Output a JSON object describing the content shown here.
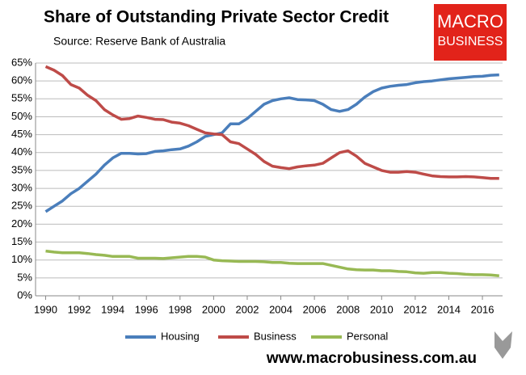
{
  "chart_data": {
    "type": "line",
    "title": "Share of Outstanding Private Sector Credit",
    "subtitle": "Source: Reserve Bank of Australia",
    "logo": [
      "MACRO",
      "BUSINESS"
    ],
    "footer": "www.macrobusiness.com.au",
    "x": [
      1990,
      1990.5,
      1991,
      1991.5,
      1992,
      1992.5,
      1993,
      1993.5,
      1994,
      1994.5,
      1995,
      1995.5,
      1996,
      1996.5,
      1997,
      1997.5,
      1998,
      1998.5,
      1999,
      1999.5,
      2000,
      2000.5,
      2001,
      2001.5,
      2002,
      2002.5,
      2003,
      2003.5,
      2004,
      2004.5,
      2005,
      2005.5,
      2006,
      2006.5,
      2007,
      2007.5,
      2008,
      2008.5,
      2009,
      2009.5,
      2010,
      2010.5,
      2011,
      2011.5,
      2012,
      2012.5,
      2013,
      2013.5,
      2014,
      2014.5,
      2015,
      2015.5,
      2016,
      2016.5,
      2017
    ],
    "series": [
      {
        "name": "Housing",
        "color": "#4a7ebb",
        "values": [
          23.5,
          25,
          26.5,
          28.5,
          30,
          32,
          34,
          36.5,
          38.5,
          39.8,
          39.8,
          39.6,
          39.7,
          40.3,
          40.5,
          40.8,
          41,
          41.8,
          43,
          44.5,
          45,
          45.5,
          48,
          48,
          49.5,
          51.5,
          53.5,
          54.5,
          55,
          55.3,
          54.8,
          54.7,
          54.5,
          53.5,
          52,
          51.5,
          52,
          53.5,
          55.5,
          57,
          58,
          58.5,
          58.8,
          59,
          59.5,
          59.8,
          60,
          60.3,
          60.6,
          60.8,
          61,
          61.2,
          61.3,
          61.6,
          61.7
        ]
      },
      {
        "name": "Business",
        "color": "#be4b48",
        "values": [
          64,
          63,
          61.5,
          59,
          58,
          56,
          54.5,
          52,
          50.5,
          49.3,
          49.5,
          50.2,
          49.8,
          49.3,
          49.2,
          48.5,
          48.2,
          47.5,
          46.5,
          45.5,
          45.2,
          45,
          43,
          42.5,
          41,
          39.5,
          37.5,
          36.2,
          35.8,
          35.5,
          36,
          36.3,
          36.5,
          37,
          38.5,
          40,
          40.5,
          39,
          37,
          36,
          35,
          34.5,
          34.5,
          34.7,
          34.5,
          34,
          33.5,
          33.3,
          33.2,
          33.2,
          33.3,
          33.2,
          33,
          32.8,
          32.8
        ]
      },
      {
        "name": "Personal",
        "color": "#98b954",
        "values": [
          12.5,
          12.2,
          12,
          12,
          12,
          11.8,
          11.5,
          11.3,
          11,
          11,
          11,
          10.5,
          10.5,
          10.5,
          10.4,
          10.6,
          10.8,
          11,
          11,
          10.8,
          10,
          9.8,
          9.7,
          9.6,
          9.6,
          9.6,
          9.5,
          9.3,
          9.3,
          9.1,
          9,
          9,
          9,
          9,
          8.5,
          8,
          7.5,
          7.3,
          7.2,
          7.2,
          7,
          7,
          6.8,
          6.7,
          6.4,
          6.3,
          6.5,
          6.5,
          6.3,
          6.2,
          6,
          5.9,
          5.9,
          5.8,
          5.6
        ]
      }
    ],
    "xlim": [
      1989.4,
      2017.2
    ],
    "xticks": [
      1990,
      1992,
      1994,
      1996,
      1998,
      2000,
      2002,
      2004,
      2006,
      2008,
      2010,
      2012,
      2014,
      2016
    ],
    "ylim": [
      0,
      65
    ],
    "yticks": [
      {
        "value": 0,
        "label": "0%"
      },
      {
        "value": 5,
        "label": "5%"
      },
      {
        "value": 10,
        "label": "10%"
      },
      {
        "value": 15,
        "label": "15%"
      },
      {
        "value": 20,
        "label": "20%"
      },
      {
        "value": 25,
        "label": "25%"
      },
      {
        "value": 30,
        "label": "30%"
      },
      {
        "value": 35,
        "label": "35%"
      },
      {
        "value": 40,
        "label": "40%"
      },
      {
        "value": 45,
        "label": "45%"
      },
      {
        "value": 50,
        "label": "50%"
      },
      {
        "value": 55,
        "label": "55%"
      },
      {
        "value": 60,
        "label": "60%"
      },
      {
        "value": 65,
        "label": "65%"
      }
    ],
    "grid": true
  }
}
